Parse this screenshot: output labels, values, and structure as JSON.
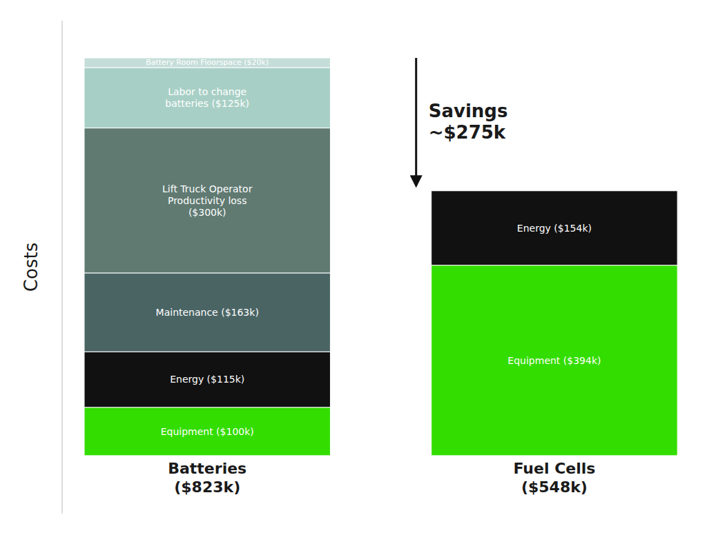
{
  "chart_data": {
    "type": "bar",
    "stacked": true,
    "y_label": "Costs",
    "categories": [
      "Batteries\n($823k)",
      "Fuel Cells\n($548k)"
    ],
    "series": [
      {
        "color": "#33dd00",
        "values": [
          100,
          394
        ],
        "value_labels": [
          "Equipment ($100k)",
          "Equipment ($394k)"
        ]
      },
      {
        "color": "#111111",
        "values": [
          115,
          154
        ],
        "value_labels": [
          "Energy ($115k)",
          "Energy ($154k)"
        ]
      },
      {
        "color": "#4a6464",
        "values": [
          163,
          null
        ],
        "value_labels": [
          "Maintenance ($163k)",
          null
        ]
      },
      {
        "color": "#607a72",
        "values": [
          300,
          null
        ],
        "value_labels": [
          "Lift Truck Operator\nProductivity loss\n($300k)",
          null
        ]
      },
      {
        "color": "#a8cfc5",
        "values": [
          125,
          null
        ],
        "value_labels": [
          "Labor to change\nbatteries ($125k)",
          null
        ]
      },
      {
        "color": "#c5ddd8",
        "values": [
          20,
          null
        ],
        "value_labels": [
          "Battery Room Floorspace ($20k)",
          null
        ]
      }
    ],
    "data_labels": true,
    "ylim": [
      -120,
      900
    ],
    "yticks": [],
    "tick_labels": false,
    "grid": false,
    "annotations": [
      {
        "text": "Savings\n~$275k"
      }
    ]
  }
}
